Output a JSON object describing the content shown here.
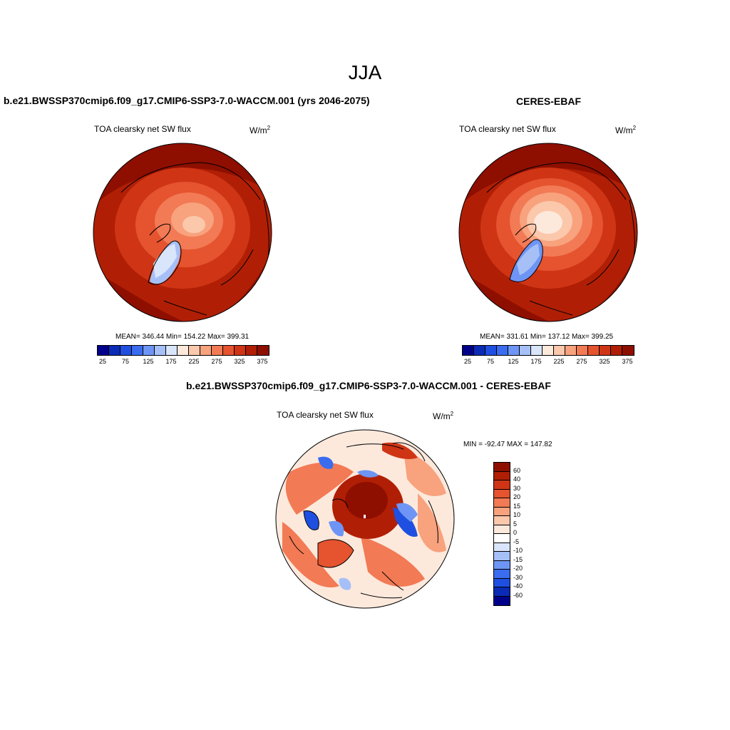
{
  "figure": {
    "season": "JJA"
  },
  "panels": [
    {
      "case_title": "b.e21.BWSSP370cmip6.f09_g17.CMIP6-SSP3-7.0-WACCM.001 (yrs 2046-2075)",
      "var_title": "TOA clearsky net SW flux",
      "units_base": "W/m",
      "units_exp": "2",
      "stats": "MEAN= 346.44  Min= 154.22  Max= 399.31"
    },
    {
      "case_title": "CERES-EBAF",
      "var_title": "TOA clearsky net SW flux",
      "units_base": "W/m",
      "units_exp": "2",
      "stats": "MEAN= 331.61  Min= 137.12  Max= 399.25"
    },
    {
      "case_title": "b.e21.BWSSP370cmip6.f09_g17.CMIP6-SSP3-7.0-WACCM.001 - CERES-EBAF",
      "var_title": "TOA clearsky net SW flux",
      "units_base": "W/m",
      "units_exp": "2",
      "stats": "MIN = -92.47 MAX = 147.82"
    }
  ],
  "colorbar_abs": {
    "colors": [
      "#00008b",
      "#0a2bb5",
      "#1f4fe0",
      "#3a6cf0",
      "#6e95f5",
      "#a6c0f7",
      "#d9e5fb",
      "#fde9dc",
      "#fbc8ac",
      "#f8a27e",
      "#f27a55",
      "#e5532f",
      "#cf3515",
      "#b01f05",
      "#8e0f00"
    ],
    "labels": [
      "25",
      "75",
      "125",
      "175",
      "225",
      "275",
      "325",
      "375"
    ]
  },
  "colorbar_diff": {
    "colors": [
      "#8e0f00",
      "#b01f05",
      "#cf3515",
      "#e5532f",
      "#f27a55",
      "#f8a27e",
      "#fbc8ac",
      "#fde9dc",
      "#ffffff",
      "#d9e5fb",
      "#a6c0f7",
      "#6e95f5",
      "#3a6cf0",
      "#1f4fe0",
      "#0a2bb5",
      "#00008b"
    ],
    "labels": [
      "60",
      "40",
      "30",
      "20",
      "15",
      "10",
      "5",
      "0",
      "-5",
      "-10",
      "-15",
      "-20",
      "-30",
      "-40",
      "-60"
    ]
  }
}
